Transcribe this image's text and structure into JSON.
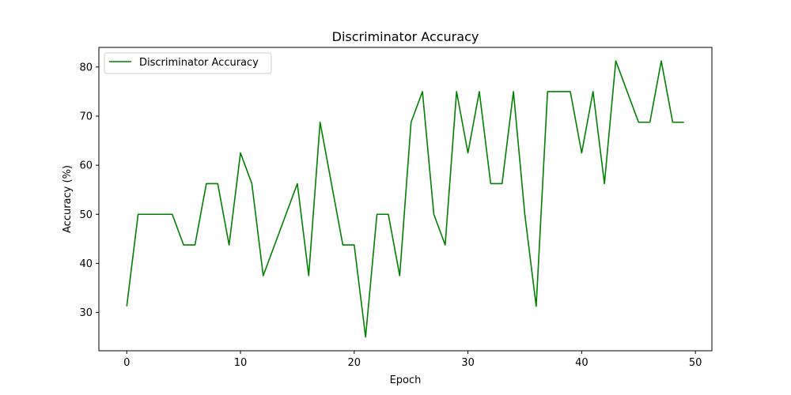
{
  "chart_data": {
    "type": "line",
    "title": "Discriminator Accuracy",
    "xlabel": "Epoch",
    "ylabel": "Accuracy (%)",
    "xlim": [
      -2.45,
      51.45
    ],
    "ylim": [
      22.2,
      84.0
    ],
    "xticks": [
      0,
      10,
      20,
      30,
      40,
      50
    ],
    "yticks": [
      30,
      40,
      50,
      60,
      70,
      80
    ],
    "grid": false,
    "legend_position": "top-left",
    "series": [
      {
        "name": "Discriminator Accuracy",
        "color": "#008000",
        "x": [
          0,
          1,
          2,
          3,
          4,
          5,
          6,
          7,
          8,
          9,
          10,
          11,
          12,
          13,
          14,
          15,
          16,
          17,
          18,
          19,
          20,
          21,
          22,
          23,
          24,
          25,
          26,
          27,
          28,
          29,
          30,
          31,
          32,
          33,
          34,
          35,
          36,
          37,
          38,
          39,
          40,
          41,
          42,
          43,
          44,
          45,
          46,
          47,
          48,
          49
        ],
        "y": [
          31.25,
          50,
          50,
          50,
          50,
          43.75,
          43.75,
          56.25,
          56.25,
          43.75,
          62.5,
          56.25,
          37.5,
          43.75,
          50,
          56.25,
          37.5,
          68.75,
          56.25,
          43.75,
          43.75,
          25,
          50,
          50,
          37.5,
          68.75,
          75,
          50,
          43.75,
          75,
          62.5,
          75,
          56.25,
          56.25,
          75,
          50,
          31.25,
          75,
          75,
          75,
          62.5,
          75,
          56.25,
          81.25,
          75,
          68.75,
          68.75,
          81.25,
          68.75,
          68.75
        ]
      }
    ]
  }
}
